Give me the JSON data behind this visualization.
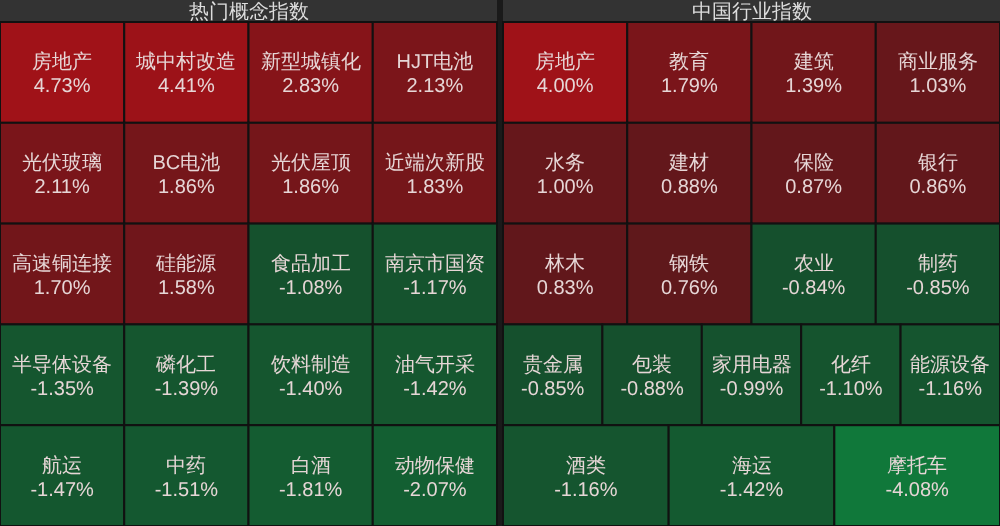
{
  "chart_data": [
    {
      "type": "other",
      "title": "热门概念指数",
      "categories": [
        "房地产",
        "城中村改造",
        "新型城镇化",
        "HJT电池",
        "光伏玻璃",
        "BC电池",
        "光伏屋顶",
        "近端次新股",
        "高速铜连接",
        "硅能源",
        "食品加工",
        "南京市国资",
        "半导体设备",
        "磷化工",
        "饮料制造",
        "油气开采",
        "航运",
        "中药",
        "白酒",
        "动物保健"
      ],
      "values": [
        4.73,
        4.41,
        2.83,
        2.13,
        2.11,
        1.86,
        1.86,
        1.83,
        1.7,
        1.58,
        -1.08,
        -1.17,
        -1.35,
        -1.39,
        -1.4,
        -1.42,
        -1.47,
        -1.51,
        -1.81,
        -2.07
      ],
      "value_labels": [
        "4.73%",
        "4.41%",
        "2.83%",
        "2.13%",
        "2.11%",
        "1.86%",
        "1.86%",
        "1.83%",
        "1.70%",
        "1.58%",
        "-1.08%",
        "-1.17%",
        "-1.35%",
        "-1.39%",
        "-1.40%",
        "-1.42%",
        "-1.47%",
        "-1.51%",
        "-1.81%",
        "-2.07%"
      ]
    },
    {
      "type": "other",
      "title": "中国行业指数",
      "categories": [
        "房地产",
        "教育",
        "建筑",
        "商业服务",
        "水务",
        "建材",
        "保险",
        "银行",
        "林木",
        "钢铁",
        "农业",
        "制药",
        "贵金属",
        "包装",
        "家用电器",
        "化纤",
        "能源设备",
        "酒类",
        "海运",
        "摩托车"
      ],
      "values": [
        4.0,
        1.79,
        1.39,
        1.03,
        1.0,
        0.88,
        0.87,
        0.86,
        0.83,
        0.76,
        -0.84,
        -0.85,
        -0.85,
        -0.88,
        -0.99,
        -1.1,
        -1.16,
        -1.16,
        -1.42,
        -4.08
      ],
      "value_labels": [
        "4.00%",
        "1.79%",
        "1.39%",
        "1.03%",
        "1.00%",
        "0.88%",
        "0.87%",
        "0.86%",
        "0.83%",
        "0.76%",
        "-0.84%",
        "-0.85%",
        "-0.85%",
        "-0.88%",
        "-0.99%",
        "-1.10%",
        "-1.16%",
        "-1.16%",
        "-1.42%",
        "-4.08%"
      ]
    }
  ]
}
